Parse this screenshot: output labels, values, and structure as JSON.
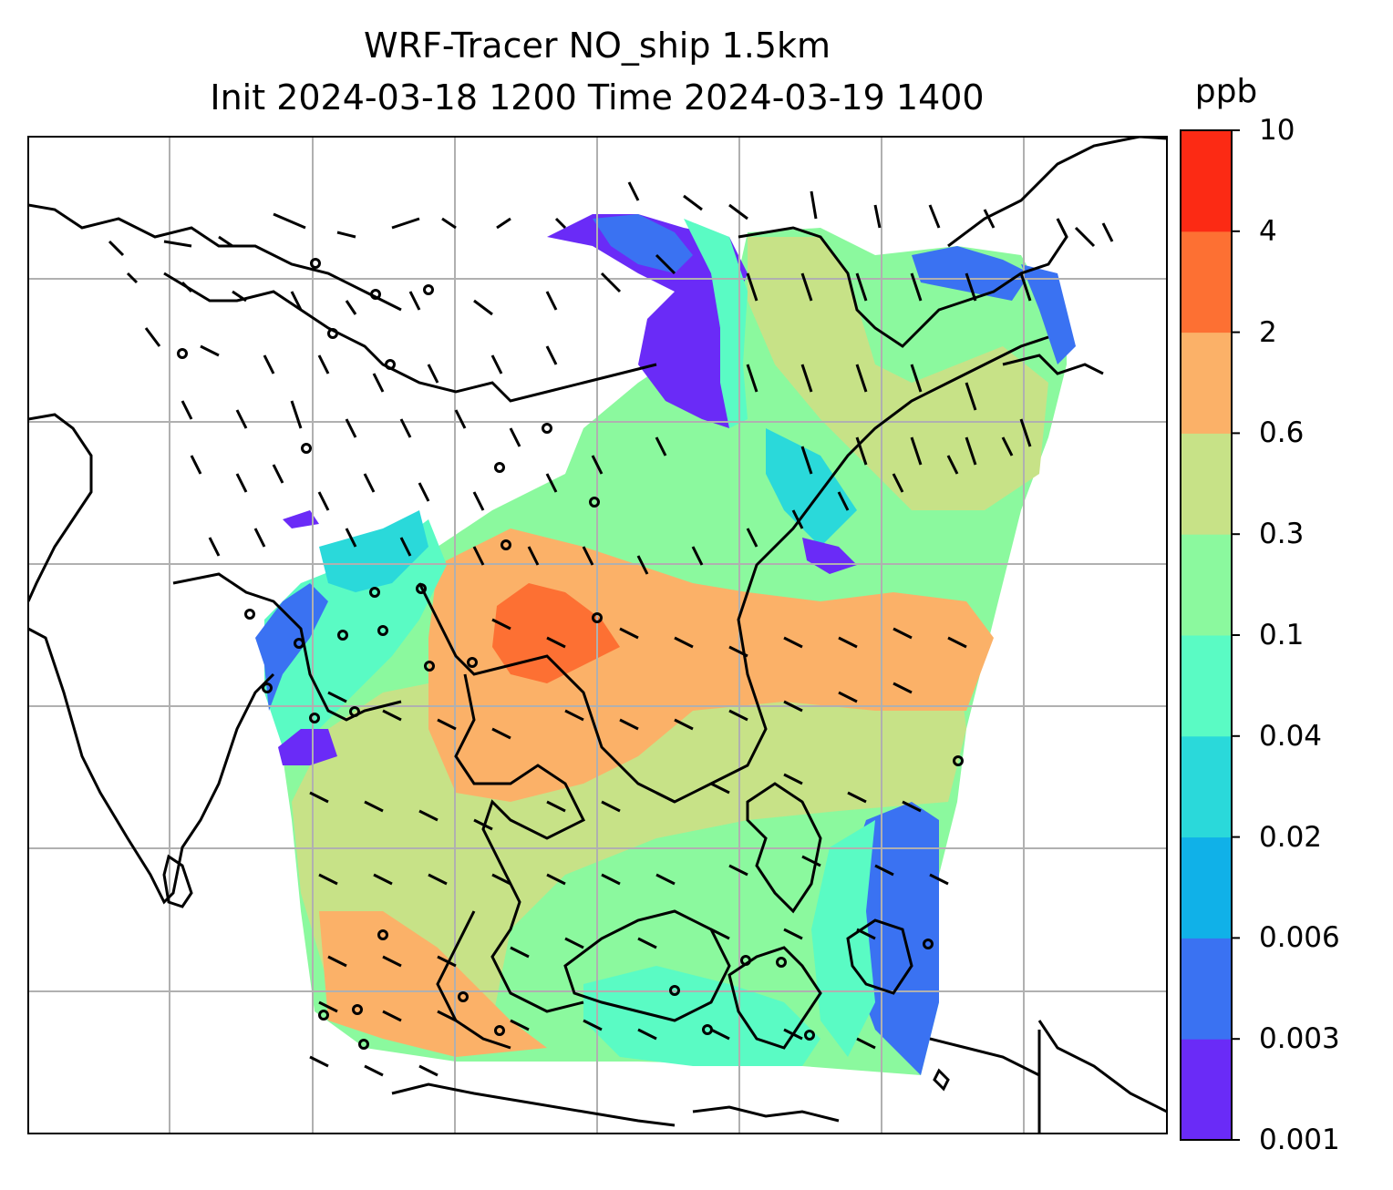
{
  "title": {
    "line1": "WRF-Tracer NO_ship 1.5km",
    "line2": "Init 2024-03-18 1200 Time 2024-03-19 1400"
  },
  "colorbar": {
    "unit": "ppb",
    "ticks": [
      "0.001",
      "0.003",
      "0.006",
      "0.02",
      "0.04",
      "0.1",
      "0.3",
      "0.6",
      "2",
      "4",
      "10"
    ],
    "colors": [
      "#6a2bf7",
      "#3a72f2",
      "#10b1e8",
      "#2ad9da",
      "#5afbc4",
      "#8bf99e",
      "#c7e287",
      "#fbb168",
      "#fd7033",
      "#fc2a14"
    ]
  },
  "map": {
    "gridlines": true,
    "field": "NO_ship",
    "overlay": "wind-barbs"
  }
}
